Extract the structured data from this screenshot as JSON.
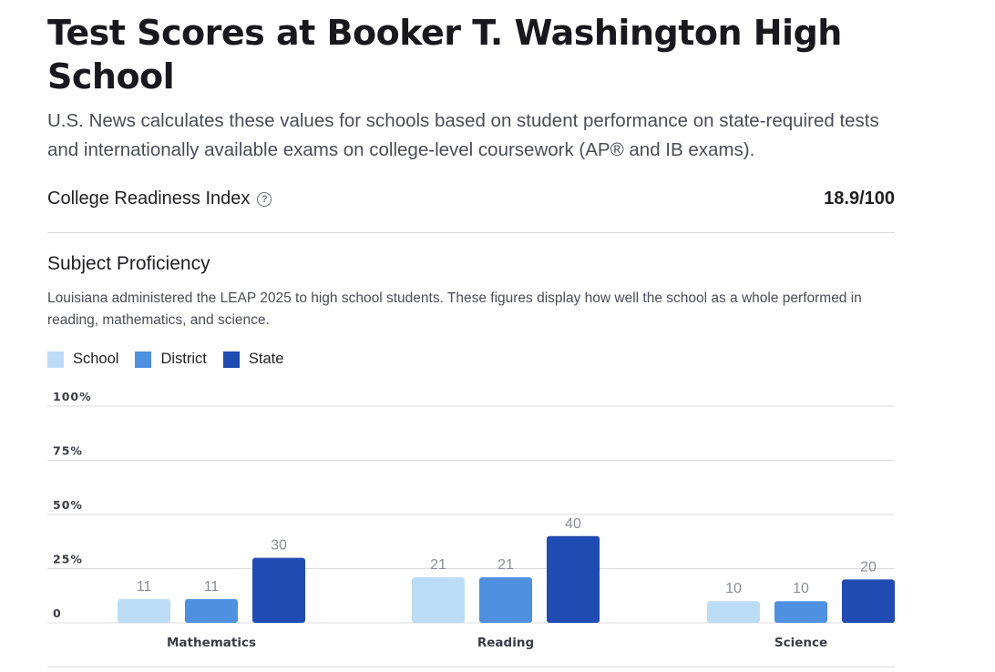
{
  "header": {
    "title": "Test Scores at Booker T. Washington High School",
    "intro": "U.S. News calculates these values for schools based on student performance on state-required tests and internationally available exams on college-level coursework (AP® and IB exams)."
  },
  "college_readiness": {
    "label": "College Readiness Index",
    "value": "18.9/100",
    "help_icon": "question-circle-icon",
    "help_glyph": "?"
  },
  "subject_proficiency": {
    "title": "Subject Proficiency",
    "description": "Louisiana administered the LEAP 2025 to high school students. These figures display how well the school as a whole performed in reading, mathematics, and science."
  },
  "colors": {
    "school": "#bcdcf6",
    "district": "#4f90e0",
    "state": "#1f4bb2",
    "grid": "#dcdce0",
    "tick_text": "#3a3c45",
    "value_text": "#8a8d96"
  },
  "chart_data": {
    "type": "bar",
    "categories": [
      "Mathematics",
      "Reading",
      "Science"
    ],
    "series": [
      {
        "name": "School",
        "values": [
          11,
          21,
          10
        ]
      },
      {
        "name": "District",
        "values": [
          11,
          21,
          10
        ]
      },
      {
        "name": "State",
        "values": [
          30,
          40,
          20
        ]
      }
    ],
    "yticks": [
      "0",
      "25%",
      "50%",
      "75%",
      "100%"
    ],
    "ylim": [
      0,
      100
    ],
    "grid": true,
    "legend": "top-left",
    "title": "",
    "xlabel": "",
    "ylabel": ""
  }
}
